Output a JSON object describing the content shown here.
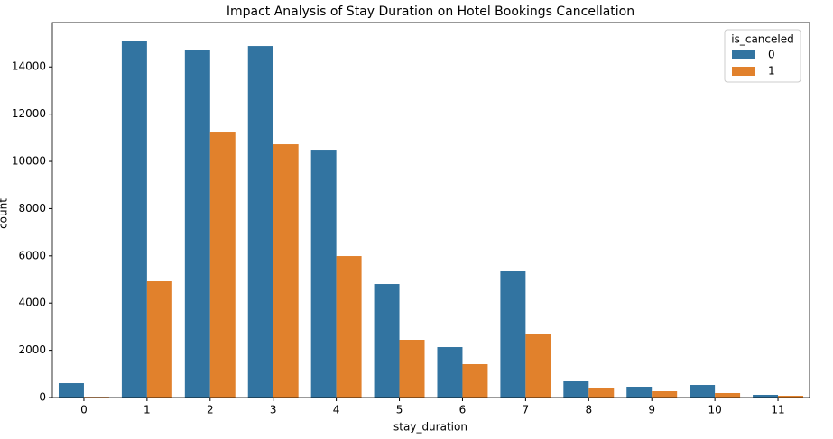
{
  "chart_data": {
    "type": "bar",
    "title": "Impact Analysis of Stay Duration on Hotel Bookings Cancellation",
    "x_label": "stay_duration",
    "y_label": "count",
    "categories": [
      "0",
      "1",
      "2",
      "3",
      "4",
      "5",
      "6",
      "7",
      "8",
      "9",
      "10",
      "11"
    ],
    "legend_title": "is_canceled",
    "legend_position": "upper right",
    "series": [
      {
        "name": "0",
        "color": "#3274a1",
        "values": [
          610,
          15115,
          14733,
          14885,
          10496,
          4809,
          2137,
          5344,
          687,
          458,
          534,
          115
        ]
      },
      {
        "name": "1",
        "color": "#e1812c",
        "values": [
          30,
          4924,
          11260,
          10725,
          5992,
          2443,
          1412,
          2710,
          420,
          267,
          191,
          76
        ]
      }
    ],
    "ylim": [
      0,
      15880
    ],
    "yticks": [
      0,
      2000,
      4000,
      6000,
      8000,
      10000,
      12000,
      14000
    ]
  }
}
